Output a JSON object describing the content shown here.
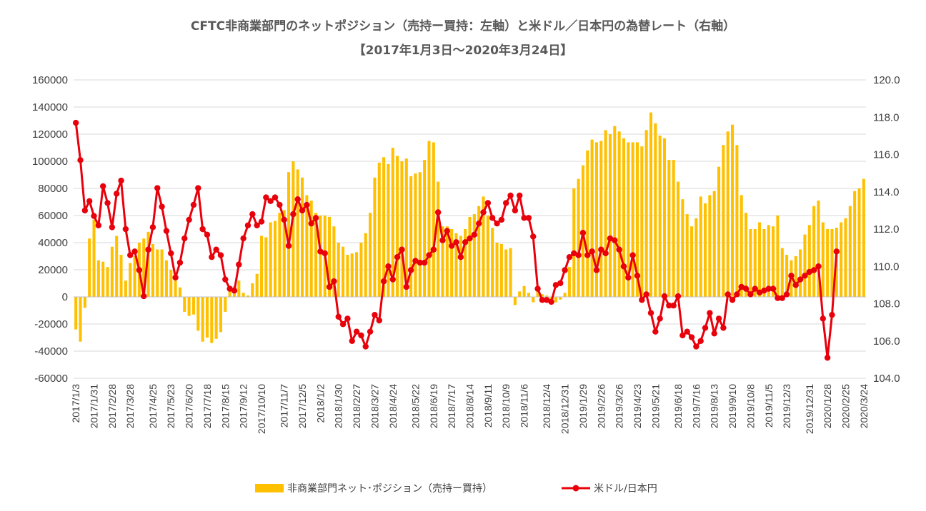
{
  "chart_data": {
    "type": "bar+line",
    "title": "CFTC非商業部門のネットポジション（売持ー買持：左軸）と米ドル／日本円の為替レート（右軸）",
    "subtitle": "【2017年1月3日～2020年3月24日】",
    "left_axis": {
      "min": -60000,
      "max": 160000,
      "step": 20000,
      "ticks": [
        "160000",
        "140000",
        "120000",
        "100000",
        "80000",
        "60000",
        "40000",
        "20000",
        "0",
        "-20000",
        "-40000",
        "-60000"
      ]
    },
    "right_axis": {
      "min": 104.0,
      "max": 120.0,
      "step": 2.0,
      "ticks": [
        "120.0",
        "118.0",
        "116.0",
        "114.0",
        "112.0",
        "110.0",
        "108.0",
        "106.0",
        "104.0"
      ]
    },
    "x_tick_labels": [
      "2017/1/3",
      "2017/1/31",
      "2017/2/28",
      "2017/3/28",
      "2017/4/25",
      "2017/5/23",
      "2017/6/20",
      "2017/7/18",
      "2017/8/15",
      "2017/9/12",
      "2017/10/10",
      "2017/11/7",
      "2017/12/5",
      "2018/1/2",
      "2018/1/30",
      "2018/2/27",
      "2018/3/27",
      "2018/4/24",
      "2018/5/22",
      "2018/6/19",
      "2018/7/17",
      "2018/8/14",
      "2018/9/11",
      "2018/10/9",
      "2018/11/6",
      "2018/12/4",
      "2018/12/31",
      "2019/1/29",
      "2019/2/26",
      "2019/3/26",
      "2019/4/23",
      "2019/5/21",
      "2019/6/18",
      "2019/7/16",
      "2019/8/13",
      "2019/9/10",
      "2019/10/8",
      "2019/11/5",
      "2019/12/3",
      "2019/12/31",
      "2020/1/28",
      "2020/2/25",
      "2020/3/24"
    ],
    "grid": true,
    "legend_position": "bottom",
    "series": [
      {
        "name": "非商業部門ネット･ポジション（売持ー買持）",
        "type": "bar",
        "axis": "left",
        "color": "#FFC000",
        "values": [
          -24000,
          -33000,
          -8000,
          43000,
          57000,
          27000,
          26000,
          22000,
          37000,
          45000,
          31000,
          12000,
          25000,
          30000,
          40000,
          43000,
          48000,
          39000,
          35000,
          35000,
          27000,
          20000,
          12000,
          7000,
          -11000,
          -14000,
          -13000,
          -25000,
          -33000,
          -30000,
          -34000,
          -31000,
          -26000,
          -11000,
          5000,
          8000,
          12000,
          3000,
          1000,
          10000,
          17000,
          45000,
          44000,
          55000,
          56000,
          62000,
          64000,
          92000,
          100000,
          94000,
          88000,
          75000,
          71000,
          62000,
          60000,
          60000,
          59000,
          52000,
          40000,
          37000,
          31000,
          32000,
          33000,
          40000,
          47000,
          62000,
          88000,
          99000,
          103000,
          98000,
          110000,
          104000,
          100000,
          102000,
          89000,
          91000,
          92000,
          101000,
          115000,
          114000,
          85000,
          52000,
          52000,
          50000,
          47000,
          45000,
          50000,
          59000,
          61000,
          67000,
          74000,
          60000,
          51000,
          40000,
          39000,
          35000,
          36000,
          -6000,
          4000,
          8000,
          3000,
          -4000,
          5000,
          2000,
          1000,
          -3000,
          -4000,
          -2000,
          3000,
          22000,
          80000,
          87000,
          97000,
          108000,
          116000,
          114000,
          115000,
          123000,
          120000,
          126000,
          122000,
          117000,
          114000,
          114000,
          114000,
          111000,
          123000,
          136000,
          128000,
          119000,
          117000,
          101000,
          101000,
          85000,
          72000,
          61000,
          52000,
          58000,
          74000,
          69000,
          75000,
          78000,
          96000,
          112000,
          122000,
          127000,
          112000,
          75000,
          62000,
          50000,
          50000,
          55000,
          50000,
          53000,
          52000,
          60000,
          36000,
          31000,
          27000,
          30000,
          35000,
          46000,
          53000,
          67000,
          71000,
          55000,
          50000,
          50000,
          51000,
          55000,
          58000,
          67000,
          78000,
          80000,
          87000
        ]
      },
      {
        "name": "米ドル/日本円",
        "type": "line",
        "axis": "right",
        "color": "#E8000B",
        "values": [
          117.7,
          115.7,
          113.0,
          113.5,
          112.7,
          112.2,
          114.3,
          113.4,
          112.1,
          113.9,
          114.6,
          112.0,
          110.6,
          110.8,
          109.8,
          108.4,
          110.9,
          112.1,
          114.2,
          113.2,
          111.9,
          110.7,
          109.4,
          110.2,
          111.5,
          112.5,
          113.3,
          114.2,
          112.0,
          111.7,
          110.5,
          110.9,
          110.6,
          109.3,
          108.8,
          108.7,
          110.1,
          111.5,
          112.2,
          112.8,
          112.2,
          112.4,
          113.7,
          113.5,
          113.7,
          113.3,
          112.5,
          111.1,
          112.8,
          113.6,
          113.0,
          113.3,
          112.3,
          112.6,
          110.8,
          110.7,
          108.9,
          109.2,
          107.3,
          106.9,
          107.2,
          106.0,
          106.5,
          106.3,
          105.7,
          106.5,
          107.4,
          107.1,
          109.2,
          110.0,
          109.3,
          110.5,
          110.9,
          108.9,
          109.8,
          110.3,
          110.2,
          110.2,
          110.6,
          110.9,
          112.9,
          111.4,
          111.9,
          111.1,
          111.3,
          110.5,
          111.3,
          111.5,
          111.7,
          112.3,
          112.9,
          113.4,
          112.6,
          112.3,
          112.5,
          113.4,
          113.8,
          113.0,
          113.8,
          112.6,
          112.6,
          111.6,
          108.8,
          108.2,
          108.2,
          108.1,
          109.0,
          109.1,
          109.8,
          110.5,
          110.7,
          110.6,
          111.8,
          110.6,
          110.8,
          109.8,
          110.9,
          110.7,
          111.5,
          111.4,
          110.9,
          110.0,
          109.4,
          110.6,
          109.5,
          108.2,
          108.5,
          107.5,
          106.5,
          107.2,
          108.4,
          107.9,
          107.9,
          108.4,
          106.3,
          106.5,
          106.2,
          105.7,
          106.0,
          106.7,
          107.5,
          106.4,
          107.2,
          106.7,
          108.5,
          108.2,
          108.5,
          108.9,
          108.8,
          108.5,
          108.8,
          108.6,
          108.7,
          108.8,
          108.8,
          108.3,
          108.3,
          108.5,
          109.5,
          109.0,
          109.3,
          109.5,
          109.7,
          109.8,
          110.0,
          107.2,
          105.1,
          107.4,
          110.8
        ]
      }
    ]
  }
}
